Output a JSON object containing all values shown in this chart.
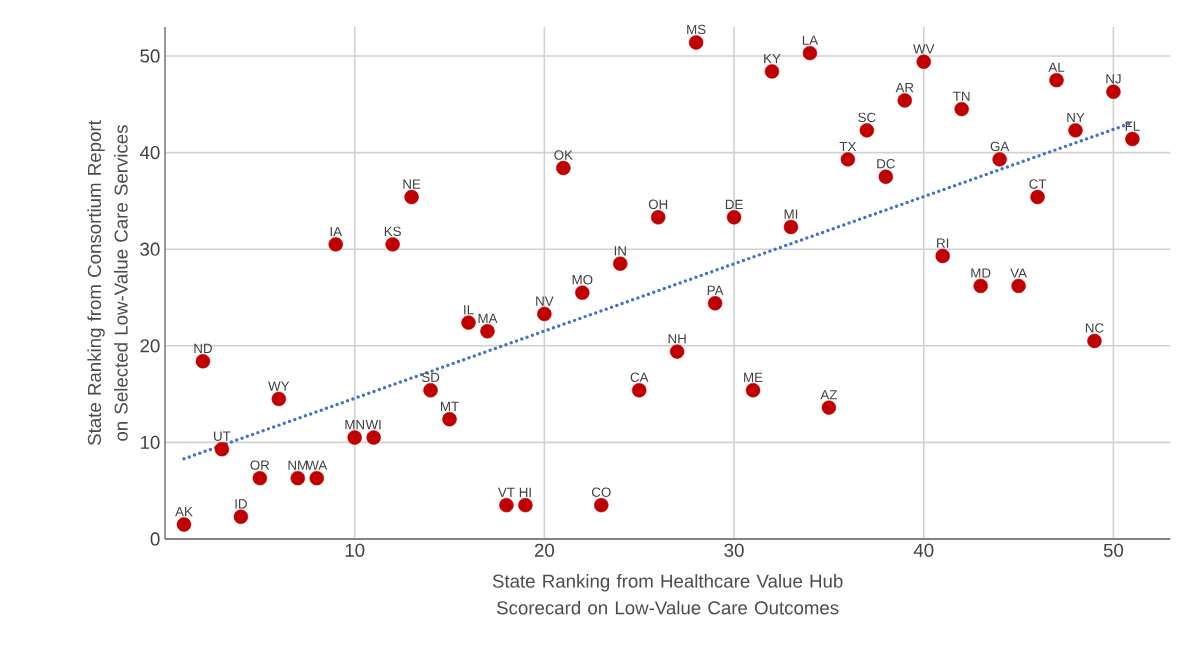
{
  "chart_data": {
    "type": "scatter",
    "xlabel": "State Ranking from Healthcare Value Hub Scorecard on Low-Value Care Outcomes",
    "ylabel": "State Ranking from Consortium Report on Selected Low-Value Care Services",
    "xlim": [
      0,
      53
    ],
    "ylim": [
      0,
      53
    ],
    "xticks": [
      10,
      20,
      30,
      40,
      50
    ],
    "yticks": [
      0,
      10,
      20,
      30,
      40,
      50
    ],
    "grid": true,
    "marker": "circle",
    "series": [
      {
        "color": "#c00000",
        "x": [
          1,
          2,
          3,
          4,
          5,
          6,
          7,
          8,
          9,
          10,
          11,
          12,
          13,
          14,
          15,
          16,
          17,
          18,
          19,
          20,
          21,
          22,
          23,
          24,
          25,
          26,
          27,
          28,
          29,
          30,
          31,
          32,
          33,
          34,
          35,
          36,
          37,
          38,
          39,
          40,
          41,
          42,
          43,
          44,
          45,
          46,
          47,
          48,
          49,
          50,
          51
        ],
        "values": [
          1.5,
          18.4,
          9.3,
          2.3,
          6.3,
          14.5,
          6.3,
          6.3,
          30.5,
          10.5,
          10.5,
          30.5,
          35.4,
          15.4,
          12.4,
          22.4,
          21.5,
          3.5,
          3.5,
          23.3,
          38.4,
          25.5,
          3.5,
          28.5,
          15.4,
          33.3,
          19.4,
          51.4,
          24.4,
          33.3,
          15.4,
          48.4,
          32.3,
          50.3,
          13.6,
          39.3,
          42.3,
          37.5,
          45.4,
          49.4,
          29.3,
          44.5,
          26.2,
          39.3,
          26.2,
          35.4,
          47.5,
          42.3,
          20.5,
          46.3,
          41.4
        ]
      },
      {
        "type": "line",
        "color": "#4472c4",
        "line_style": "dotted",
        "marker": "none",
        "x": [
          1,
          51
        ],
        "values": [
          8.3,
          43.1
        ]
      }
    ],
    "annotations": [
      {
        "text": "AK",
        "x": 1,
        "y": 1.5
      },
      {
        "text": "ND",
        "x": 2,
        "y": 18.4
      },
      {
        "text": "UT",
        "x": 3,
        "y": 9.3
      },
      {
        "text": "ID",
        "x": 4,
        "y": 2.3
      },
      {
        "text": "OR",
        "x": 5,
        "y": 6.3
      },
      {
        "text": "WY",
        "x": 6,
        "y": 14.5
      },
      {
        "text": "NM",
        "x": 7,
        "y": 6.3
      },
      {
        "text": "WA",
        "x": 8,
        "y": 6.3
      },
      {
        "text": "IA",
        "x": 9,
        "y": 30.5
      },
      {
        "text": "MN",
        "x": 10,
        "y": 10.5
      },
      {
        "text": "WI",
        "x": 11,
        "y": 10.5
      },
      {
        "text": "KS",
        "x": 12,
        "y": 30.5
      },
      {
        "text": "NE",
        "x": 13,
        "y": 35.4
      },
      {
        "text": "SD",
        "x": 14,
        "y": 15.4
      },
      {
        "text": "MT",
        "x": 15,
        "y": 12.4
      },
      {
        "text": "IL",
        "x": 16,
        "y": 22.4
      },
      {
        "text": "MA",
        "x": 17,
        "y": 21.5
      },
      {
        "text": "VT",
        "x": 18,
        "y": 3.5
      },
      {
        "text": "HI",
        "x": 19,
        "y": 3.5
      },
      {
        "text": "NV",
        "x": 20,
        "y": 23.3
      },
      {
        "text": "OK",
        "x": 21,
        "y": 38.4
      },
      {
        "text": "MO",
        "x": 22,
        "y": 25.5
      },
      {
        "text": "CO",
        "x": 23,
        "y": 3.5
      },
      {
        "text": "IN",
        "x": 24,
        "y": 28.5
      },
      {
        "text": "CA",
        "x": 25,
        "y": 15.4
      },
      {
        "text": "OH",
        "x": 26,
        "y": 33.3
      },
      {
        "text": "NH",
        "x": 27,
        "y": 19.4
      },
      {
        "text": "MS",
        "x": 28,
        "y": 51.4
      },
      {
        "text": "PA",
        "x": 29,
        "y": 24.4
      },
      {
        "text": "DE",
        "x": 30,
        "y": 33.3
      },
      {
        "text": "ME",
        "x": 31,
        "y": 15.4
      },
      {
        "text": "KY",
        "x": 32,
        "y": 48.4
      },
      {
        "text": "MI",
        "x": 33,
        "y": 32.3
      },
      {
        "text": "LA",
        "x": 34,
        "y": 50.3
      },
      {
        "text": "AZ",
        "x": 35,
        "y": 13.6
      },
      {
        "text": "TX",
        "x": 36,
        "y": 39.3
      },
      {
        "text": "SC",
        "x": 37,
        "y": 42.3
      },
      {
        "text": "DC",
        "x": 38,
        "y": 37.5
      },
      {
        "text": "AR",
        "x": 39,
        "y": 45.4
      },
      {
        "text": "WV",
        "x": 40,
        "y": 49.4
      },
      {
        "text": "RI",
        "x": 41,
        "y": 29.3
      },
      {
        "text": "TN",
        "x": 42,
        "y": 44.5
      },
      {
        "text": "MD",
        "x": 43,
        "y": 26.2
      },
      {
        "text": "GA",
        "x": 44,
        "y": 39.3
      },
      {
        "text": "VA",
        "x": 45,
        "y": 26.2
      },
      {
        "text": "CT",
        "x": 46,
        "y": 35.4
      },
      {
        "text": "AL",
        "x": 47,
        "y": 47.5
      },
      {
        "text": "NY",
        "x": 48,
        "y": 42.3
      },
      {
        "text": "NC",
        "x": 49,
        "y": 20.5
      },
      {
        "text": "NJ",
        "x": 50,
        "y": 46.3
      },
      {
        "text": "FL",
        "x": 51,
        "y": 41.4
      }
    ]
  }
}
